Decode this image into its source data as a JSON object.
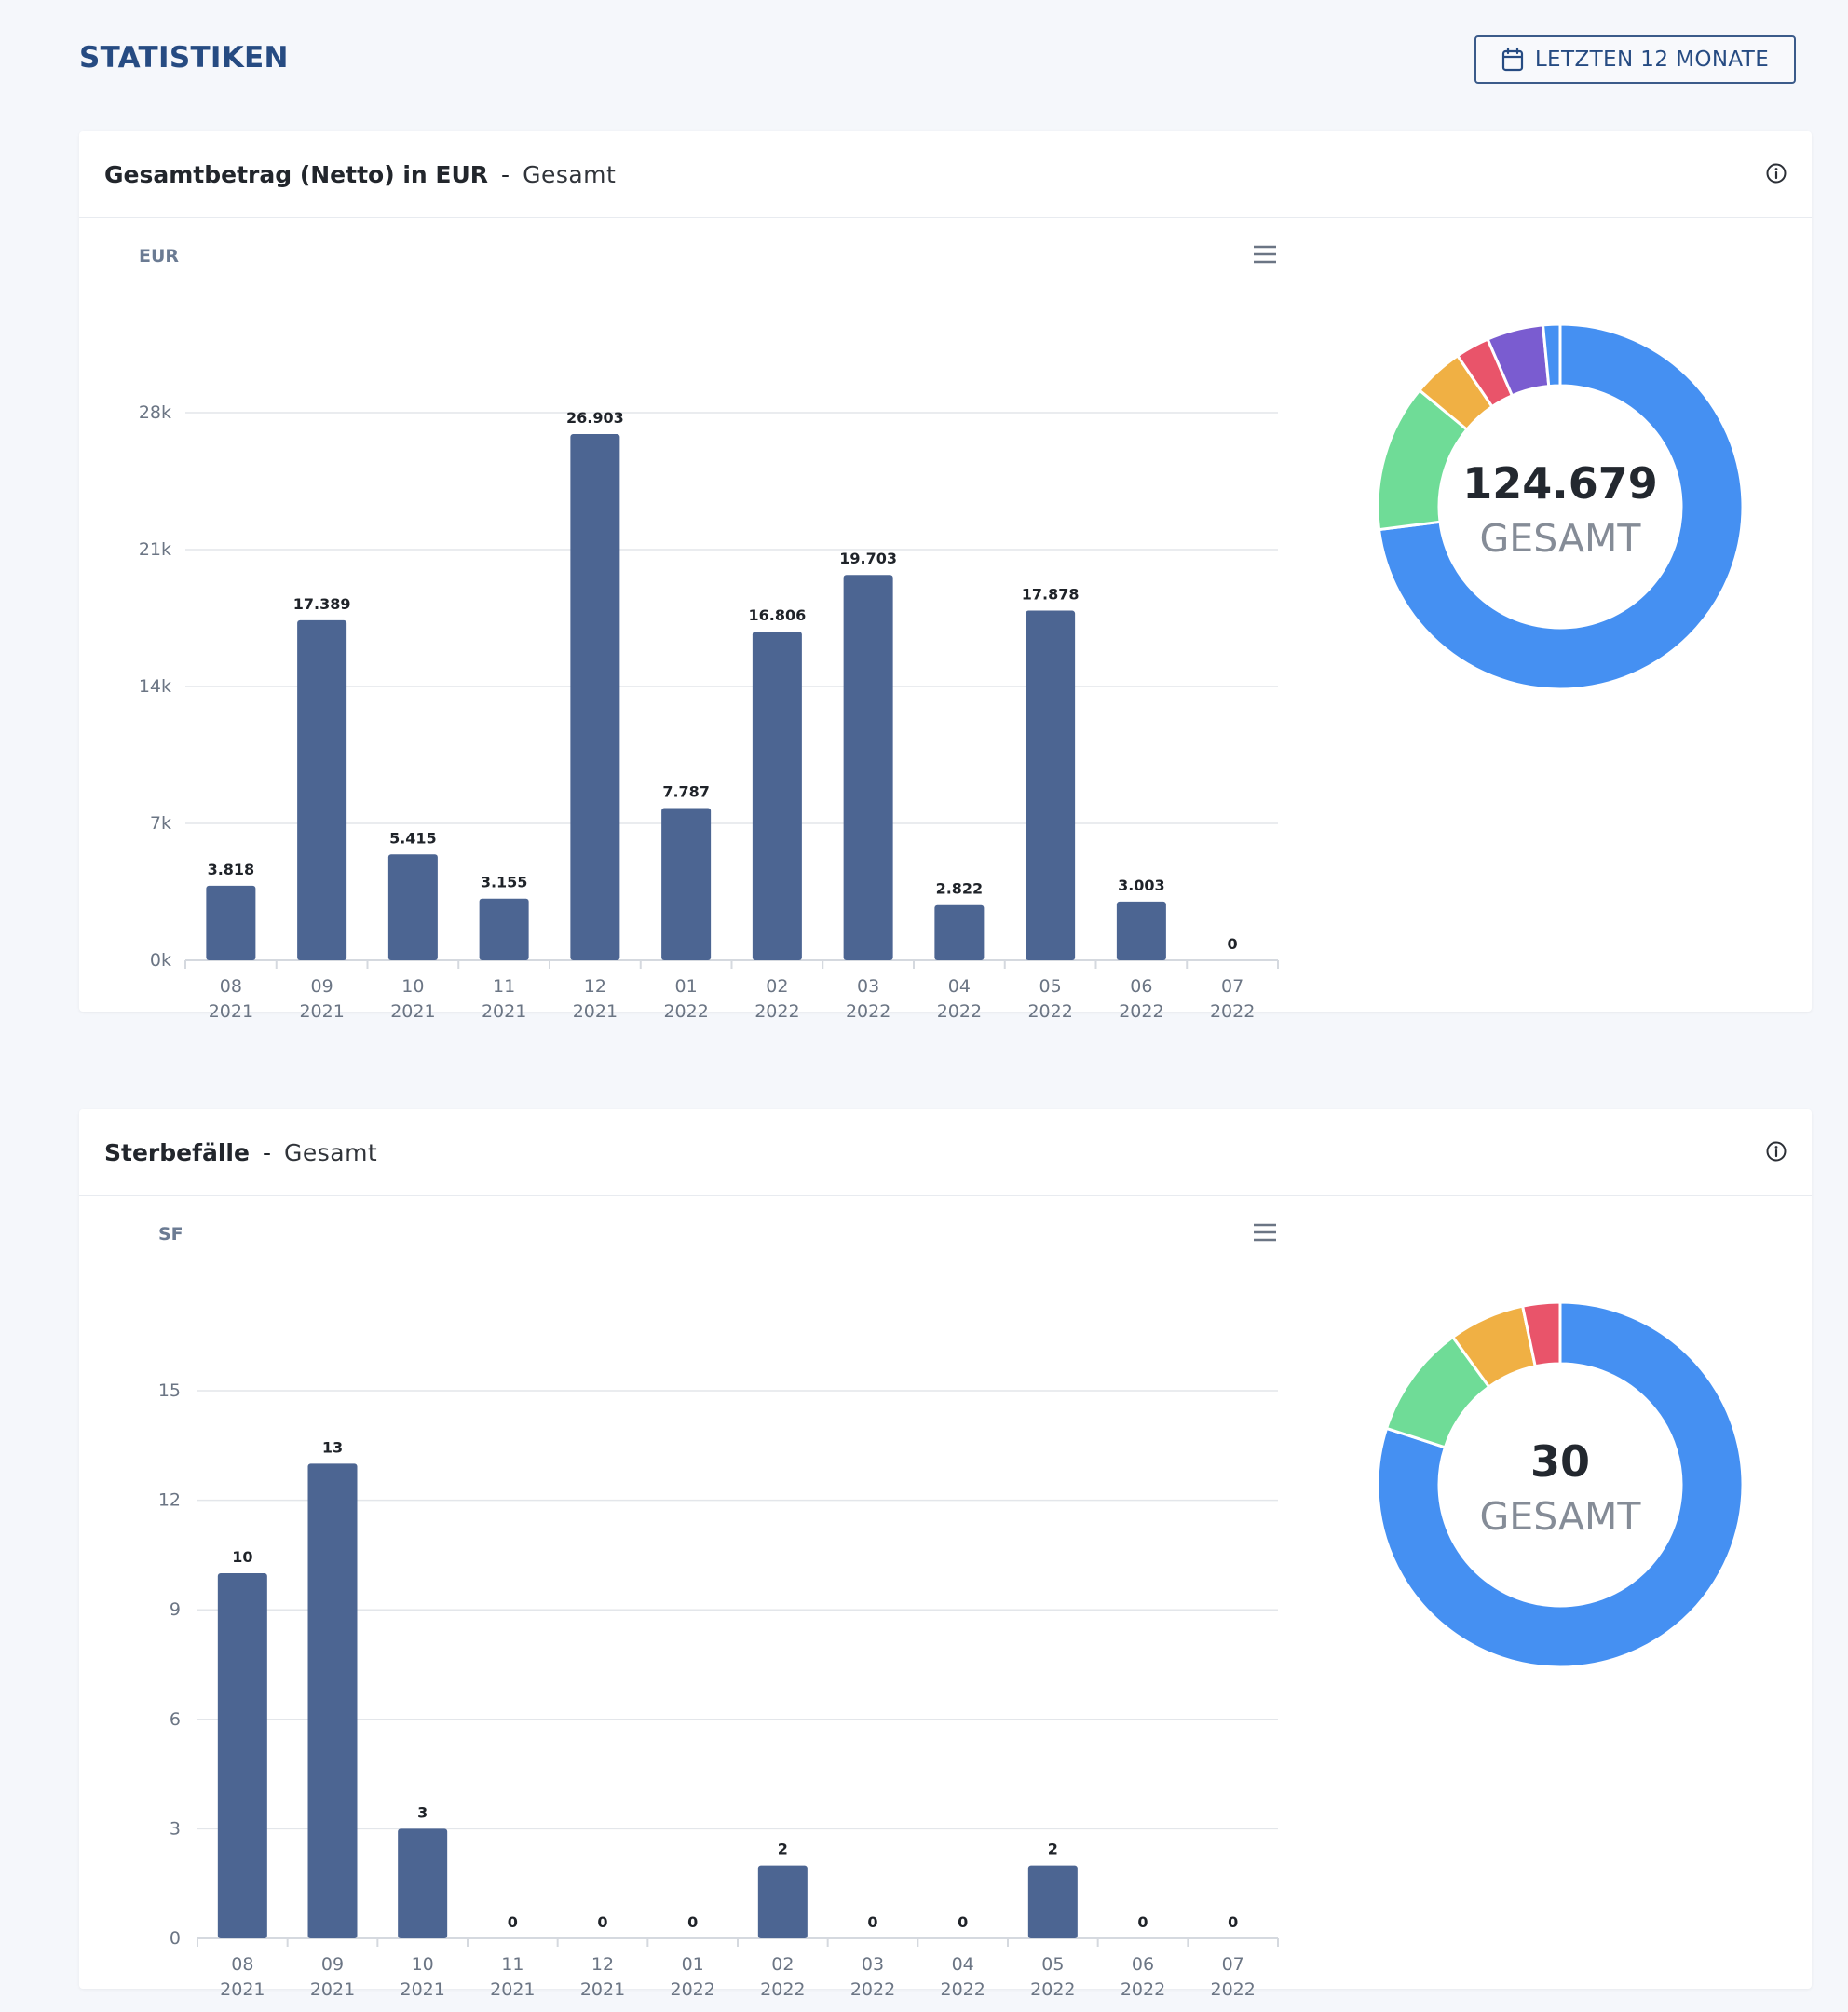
{
  "page": {
    "title": "STATISTIKEN"
  },
  "filter": {
    "label": "LETZTEN 12 MONATE",
    "icon": "calendar-icon"
  },
  "colors": {
    "bar": "#4c6592",
    "grid": "#e3e6ea",
    "axis": "#d5d9df",
    "tick": "#6b7584",
    "accent": "#264b82"
  },
  "cards": [
    {
      "title": "Gesamtbetrag (Netto) in EUR",
      "separator": "-",
      "subtitle": "Gesamt",
      "axis_unit": "EUR",
      "donut_total": "124.679",
      "donut_label": "GESAMT"
    },
    {
      "title": "Sterbefälle",
      "separator": "-",
      "subtitle": "Gesamt",
      "axis_unit": "SF",
      "donut_total": "30",
      "donut_label": "GESAMT"
    }
  ],
  "chart_data": [
    {
      "type": "bar",
      "title": "Gesamtbetrag (Netto) in EUR",
      "ylabel": "EUR",
      "categories": [
        [
          "08",
          "2021"
        ],
        [
          "09",
          "2021"
        ],
        [
          "10",
          "2021"
        ],
        [
          "11",
          "2021"
        ],
        [
          "12",
          "2021"
        ],
        [
          "01",
          "2022"
        ],
        [
          "02",
          "2022"
        ],
        [
          "03",
          "2022"
        ],
        [
          "04",
          "2022"
        ],
        [
          "05",
          "2022"
        ],
        [
          "06",
          "2022"
        ],
        [
          "07",
          "2022"
        ]
      ],
      "values": [
        3818,
        17389,
        5415,
        3155,
        26903,
        7787,
        16806,
        19703,
        2822,
        17878,
        3003,
        0
      ],
      "value_labels": [
        "3.818",
        "17.389",
        "5.415",
        "3.155",
        "26.903",
        "7.787",
        "16.806",
        "19.703",
        "2.822",
        "17.878",
        "3.003",
        "0"
      ],
      "yticks": [
        0,
        7000,
        14000,
        21000,
        28000
      ],
      "ytick_labels": [
        "0k",
        "7k",
        "14k",
        "21k",
        "28k"
      ],
      "ylim": [
        0,
        28000
      ],
      "grid": true
    },
    {
      "type": "pie",
      "total_label": "124.679",
      "slices": [
        {
          "value": 0.73,
          "color": "#4590f2"
        },
        {
          "value": 0.13,
          "color": "#6fdc97"
        },
        {
          "value": 0.045,
          "color": "#f0b044"
        },
        {
          "value": 0.03,
          "color": "#e9546a"
        },
        {
          "value": 0.05,
          "color": "#7a5cd0"
        },
        {
          "value": 0.015,
          "color": "#4590f2"
        }
      ]
    },
    {
      "type": "bar",
      "title": "Sterbefälle",
      "ylabel": "SF",
      "categories": [
        [
          "08",
          "2021"
        ],
        [
          "09",
          "2021"
        ],
        [
          "10",
          "2021"
        ],
        [
          "11",
          "2021"
        ],
        [
          "12",
          "2021"
        ],
        [
          "01",
          "2022"
        ],
        [
          "02",
          "2022"
        ],
        [
          "03",
          "2022"
        ],
        [
          "04",
          "2022"
        ],
        [
          "05",
          "2022"
        ],
        [
          "06",
          "2022"
        ],
        [
          "07",
          "2022"
        ]
      ],
      "values": [
        10,
        13,
        3,
        0,
        0,
        0,
        2,
        0,
        0,
        2,
        0,
        0
      ],
      "value_labels": [
        "10",
        "13",
        "3",
        "0",
        "0",
        "0",
        "2",
        "0",
        "0",
        "2",
        "0",
        "0"
      ],
      "yticks": [
        0,
        3,
        6,
        9,
        12,
        15
      ],
      "ytick_labels": [
        "0",
        "3",
        "6",
        "9",
        "12",
        "15"
      ],
      "ylim": [
        0,
        15
      ],
      "grid": true
    },
    {
      "type": "pie",
      "total_label": "30",
      "slices": [
        {
          "value": 0.8,
          "color": "#4590f2"
        },
        {
          "value": 0.1,
          "color": "#6fdc97"
        },
        {
          "value": 0.067,
          "color": "#f0b044"
        },
        {
          "value": 0.033,
          "color": "#e9546a"
        }
      ]
    }
  ]
}
